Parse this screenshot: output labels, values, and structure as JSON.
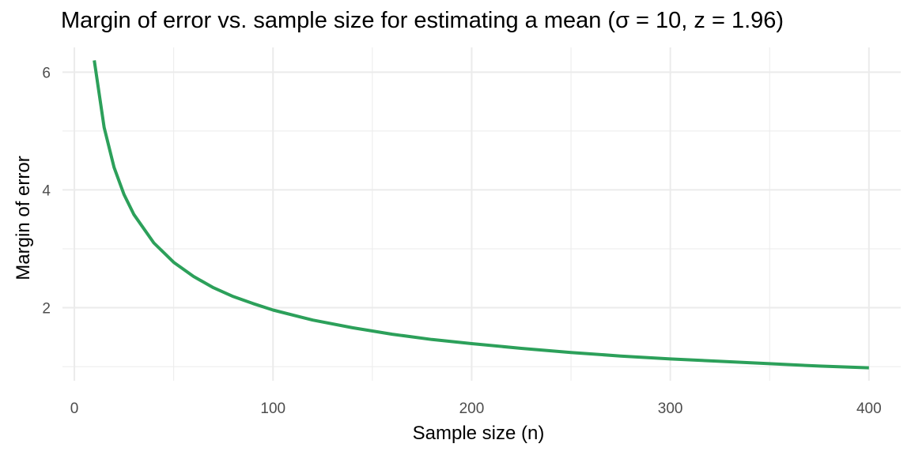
{
  "chart_data": {
    "type": "line",
    "title": "Margin of error vs. sample size for estimating a mean (σ = 10, z = 1.96)",
    "xlabel": "Sample size (n)",
    "ylabel": "Margin of error",
    "xlim": [
      -6,
      416
    ],
    "ylim": [
      0.76,
      6.42
    ],
    "x_ticks": [
      0,
      100,
      200,
      300,
      400
    ],
    "y_ticks": [
      2,
      4,
      6
    ],
    "x_minor_ticks": [
      50,
      150,
      250,
      350
    ],
    "y_minor_ticks": [
      1,
      3,
      5
    ],
    "grid": true,
    "colors": {
      "line": "#2ca05a",
      "grid": "#ebebeb",
      "axis_text": "#4d4d4d"
    },
    "sigma": 10,
    "z": 1.96,
    "series": [
      {
        "x": [
          10,
          15,
          20,
          25,
          30,
          40,
          50,
          60,
          70,
          80,
          90,
          100,
          120,
          140,
          160,
          180,
          200,
          225,
          250,
          275,
          300,
          325,
          350,
          375,
          400
        ],
        "values": [
          6.2,
          5.06,
          4.38,
          3.92,
          3.58,
          3.1,
          2.77,
          2.53,
          2.34,
          2.19,
          2.07,
          1.96,
          1.79,
          1.66,
          1.55,
          1.46,
          1.39,
          1.31,
          1.24,
          1.18,
          1.13,
          1.09,
          1.05,
          1.01,
          0.98
        ]
      }
    ]
  }
}
